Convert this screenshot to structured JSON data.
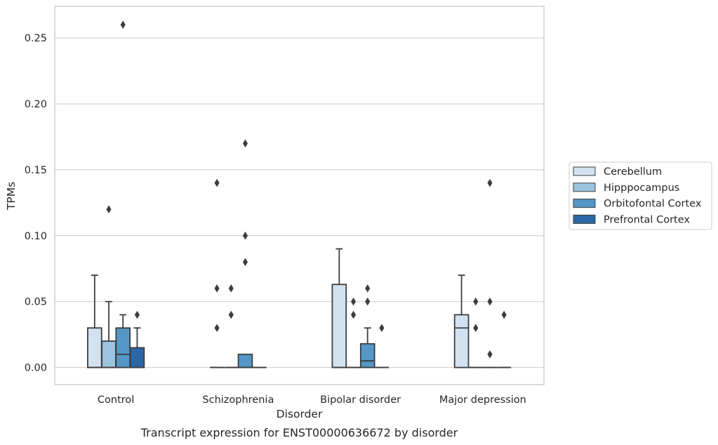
{
  "chart_data": {
    "type": "box",
    "xlabel": "Disorder",
    "ylabel": "TPMs",
    "caption": "Transcript expression for ENST00000636672 by disorder",
    "ylim": [
      -0.013,
      0.274
    ],
    "y_ticks": [
      "0.00",
      "0.05",
      "0.10",
      "0.15",
      "0.20",
      "0.25"
    ],
    "y_tick_values": [
      0.0,
      0.05,
      0.1,
      0.15,
      0.2,
      0.25
    ],
    "grid": "horizontal",
    "legend_position": "right",
    "categories": [
      "Control",
      "Schizophrenia",
      "Bipolar disorder",
      "Major depression"
    ],
    "series": [
      {
        "name": "Cerebellum",
        "color": "#d2e2f1",
        "boxes": [
          {
            "q1": 0.0,
            "median": 0.0,
            "q3": 0.03,
            "whisker_low": 0.0,
            "whisker_high": 0.07,
            "outliers": []
          },
          {
            "q1": 0.0,
            "median": 0.0,
            "q3": 0.0,
            "whisker_low": 0.0,
            "whisker_high": 0.0,
            "outliers": [
              0.03,
              0.06,
              0.14
            ]
          },
          {
            "q1": 0.0,
            "median": 0.0,
            "q3": 0.063,
            "whisker_low": 0.0,
            "whisker_high": 0.09,
            "outliers": []
          },
          {
            "q1": 0.0,
            "median": 0.03,
            "q3": 0.04,
            "whisker_low": 0.0,
            "whisker_high": 0.07,
            "outliers": []
          }
        ]
      },
      {
        "name": "Hipppocampus",
        "color": "#9bc4df",
        "boxes": [
          {
            "q1": 0.0,
            "median": 0.0,
            "q3": 0.02,
            "whisker_low": 0.0,
            "whisker_high": 0.05,
            "outliers": [
              0.12
            ]
          },
          {
            "q1": 0.0,
            "median": 0.0,
            "q3": 0.0,
            "whisker_low": 0.0,
            "whisker_high": 0.0,
            "outliers": [
              0.04,
              0.06
            ]
          },
          {
            "q1": 0.0,
            "median": 0.0,
            "q3": 0.0,
            "whisker_low": 0.0,
            "whisker_high": 0.0,
            "outliers": [
              0.04,
              0.05
            ]
          },
          {
            "q1": 0.0,
            "median": 0.0,
            "q3": 0.0,
            "whisker_low": 0.0,
            "whisker_high": 0.0,
            "outliers": [
              0.03,
              0.05
            ]
          }
        ]
      },
      {
        "name": "Orbitofontal Cortex",
        "color": "#5497c6",
        "boxes": [
          {
            "q1": 0.0,
            "median": 0.01,
            "q3": 0.03,
            "whisker_low": 0.0,
            "whisker_high": 0.04,
            "outliers": [
              0.26
            ]
          },
          {
            "q1": 0.0,
            "median": 0.0,
            "q3": 0.01,
            "whisker_low": 0.0,
            "whisker_high": 0.01,
            "outliers": [
              0.08,
              0.1,
              0.17
            ]
          },
          {
            "q1": 0.0,
            "median": 0.005,
            "q3": 0.018,
            "whisker_low": 0.0,
            "whisker_high": 0.03,
            "outliers": [
              0.05,
              0.06
            ]
          },
          {
            "q1": 0.0,
            "median": 0.0,
            "q3": 0.0,
            "whisker_low": 0.0,
            "whisker_high": 0.0,
            "outliers": [
              0.01,
              0.05,
              0.14
            ]
          }
        ]
      },
      {
        "name": "Prefrontal Cortex",
        "color": "#2b66a6",
        "boxes": [
          {
            "q1": 0.0,
            "median": 0.0,
            "q3": 0.015,
            "whisker_low": 0.0,
            "whisker_high": 0.03,
            "outliers": [
              0.04
            ]
          },
          {
            "q1": 0.0,
            "median": 0.0,
            "q3": 0.0,
            "whisker_low": 0.0,
            "whisker_high": 0.0,
            "outliers": []
          },
          {
            "q1": 0.0,
            "median": 0.0,
            "q3": 0.0,
            "whisker_low": 0.0,
            "whisker_high": 0.0,
            "outliers": [
              0.03
            ]
          },
          {
            "q1": 0.0,
            "median": 0.0,
            "q3": 0.0,
            "whisker_low": 0.0,
            "whisker_high": 0.0,
            "outliers": [
              0.04
            ]
          }
        ]
      }
    ]
  }
}
